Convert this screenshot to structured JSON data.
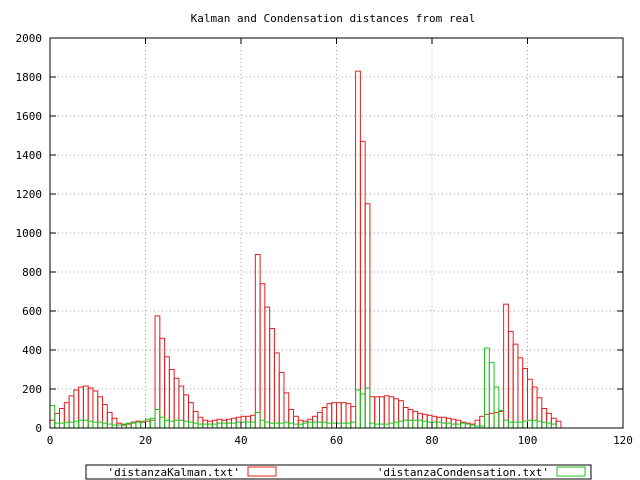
{
  "chart_data": {
    "type": "bar",
    "title": "Kalman and Condensation distances from real",
    "xlabel": "",
    "ylabel": "",
    "xlim": [
      0,
      120
    ],
    "ylim": [
      0,
      2000
    ],
    "x_ticks": [
      "0",
      "20",
      "40",
      "60",
      "80",
      "100",
      "120"
    ],
    "y_ticks": [
      "0",
      "200",
      "400",
      "600",
      "800",
      "1000",
      "1200",
      "1400",
      "1600",
      "1800",
      "2000"
    ],
    "grid": true,
    "legend_position": "bottom",
    "style": "outlined histogram steps",
    "series": [
      {
        "name": "'distanzaKalman.txt'",
        "color": "#e02020",
        "values": [
          40,
          75,
          100,
          130,
          165,
          195,
          210,
          215,
          205,
          190,
          160,
          120,
          80,
          50,
          25,
          15,
          20,
          30,
          35,
          30,
          35,
          40,
          575,
          460,
          365,
          300,
          255,
          215,
          170,
          130,
          85,
          55,
          40,
          35,
          40,
          45,
          40,
          45,
          50,
          55,
          60,
          60,
          65,
          890,
          740,
          620,
          510,
          385,
          285,
          180,
          95,
          60,
          40,
          35,
          45,
          60,
          80,
          105,
          125,
          130,
          130,
          130,
          125,
          110,
          1830,
          1470,
          1150,
          160,
          160,
          160,
          165,
          160,
          150,
          140,
          105,
          95,
          85,
          75,
          70,
          65,
          60,
          55,
          55,
          50,
          45,
          40,
          30,
          25,
          20,
          40,
          60,
          70,
          75,
          80,
          85,
          635,
          495,
          430,
          360,
          305,
          250,
          210,
          155,
          100,
          75,
          50,
          35
        ]
      },
      {
        "name": "'distanzaCondensation.txt'",
        "color": "#20c020",
        "values": [
          115,
          25,
          25,
          30,
          30,
          35,
          40,
          40,
          35,
          30,
          30,
          25,
          20,
          15,
          15,
          20,
          25,
          25,
          30,
          35,
          45,
          50,
          95,
          55,
          40,
          35,
          40,
          40,
          35,
          30,
          25,
          20,
          20,
          20,
          20,
          25,
          25,
          25,
          25,
          30,
          30,
          30,
          30,
          80,
          40,
          30,
          25,
          25,
          25,
          30,
          25,
          20,
          20,
          25,
          30,
          30,
          30,
          30,
          25,
          25,
          25,
          25,
          25,
          30,
          195,
          175,
          205,
          25,
          20,
          20,
          20,
          25,
          30,
          35,
          40,
          40,
          40,
          40,
          35,
          30,
          30,
          30,
          25,
          25,
          20,
          20,
          25,
          20,
          15,
          10,
          10,
          410,
          335,
          210,
          90,
          40,
          30,
          30,
          30,
          35,
          40,
          40,
          35,
          30,
          25,
          20
        ]
      }
    ]
  }
}
